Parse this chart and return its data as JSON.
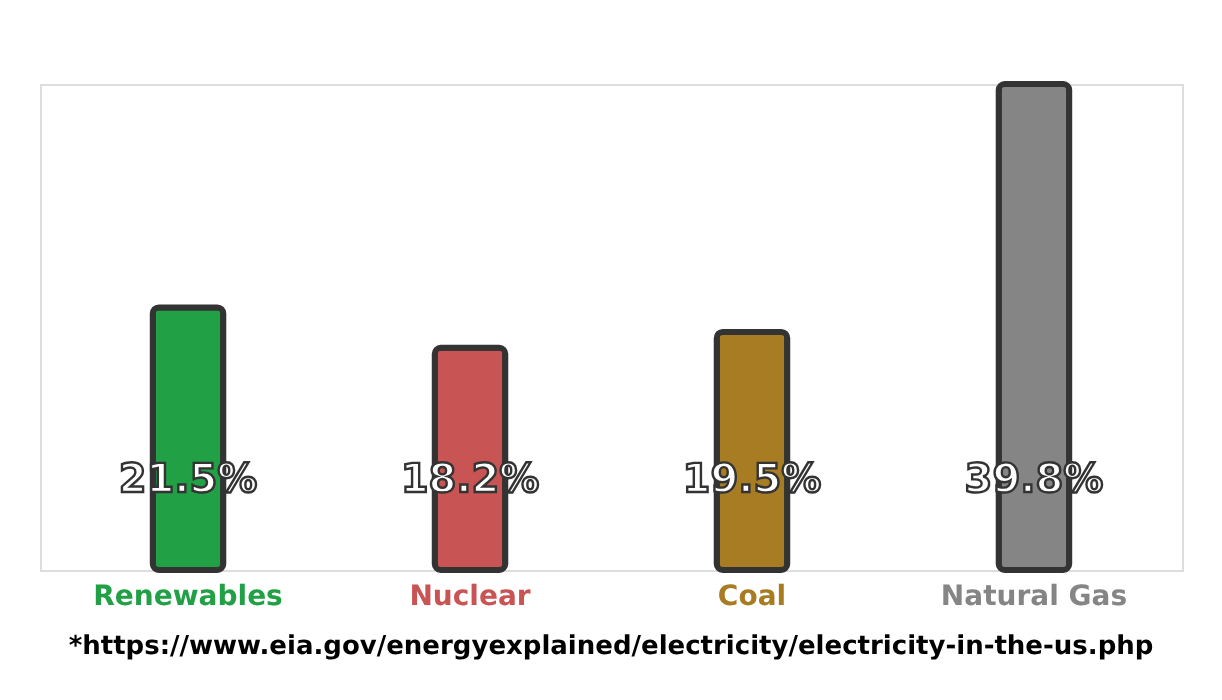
{
  "chart_data": {
    "type": "bar",
    "categories": [
      "Renewables",
      "Nuclear",
      "Coal",
      "Natural Gas"
    ],
    "values": [
      21.5,
      18.2,
      19.5,
      39.8
    ],
    "colors": [
      "#22a045",
      "#c85454",
      "#a87c22",
      "#858585"
    ],
    "value_labels": [
      "21.5%",
      "18.2%",
      "19.5%",
      "39.8%"
    ],
    "annotations": [
      "*https://www.eia.gov/energyexplained/electricity/electricity-in-the-us.php"
    ]
  }
}
